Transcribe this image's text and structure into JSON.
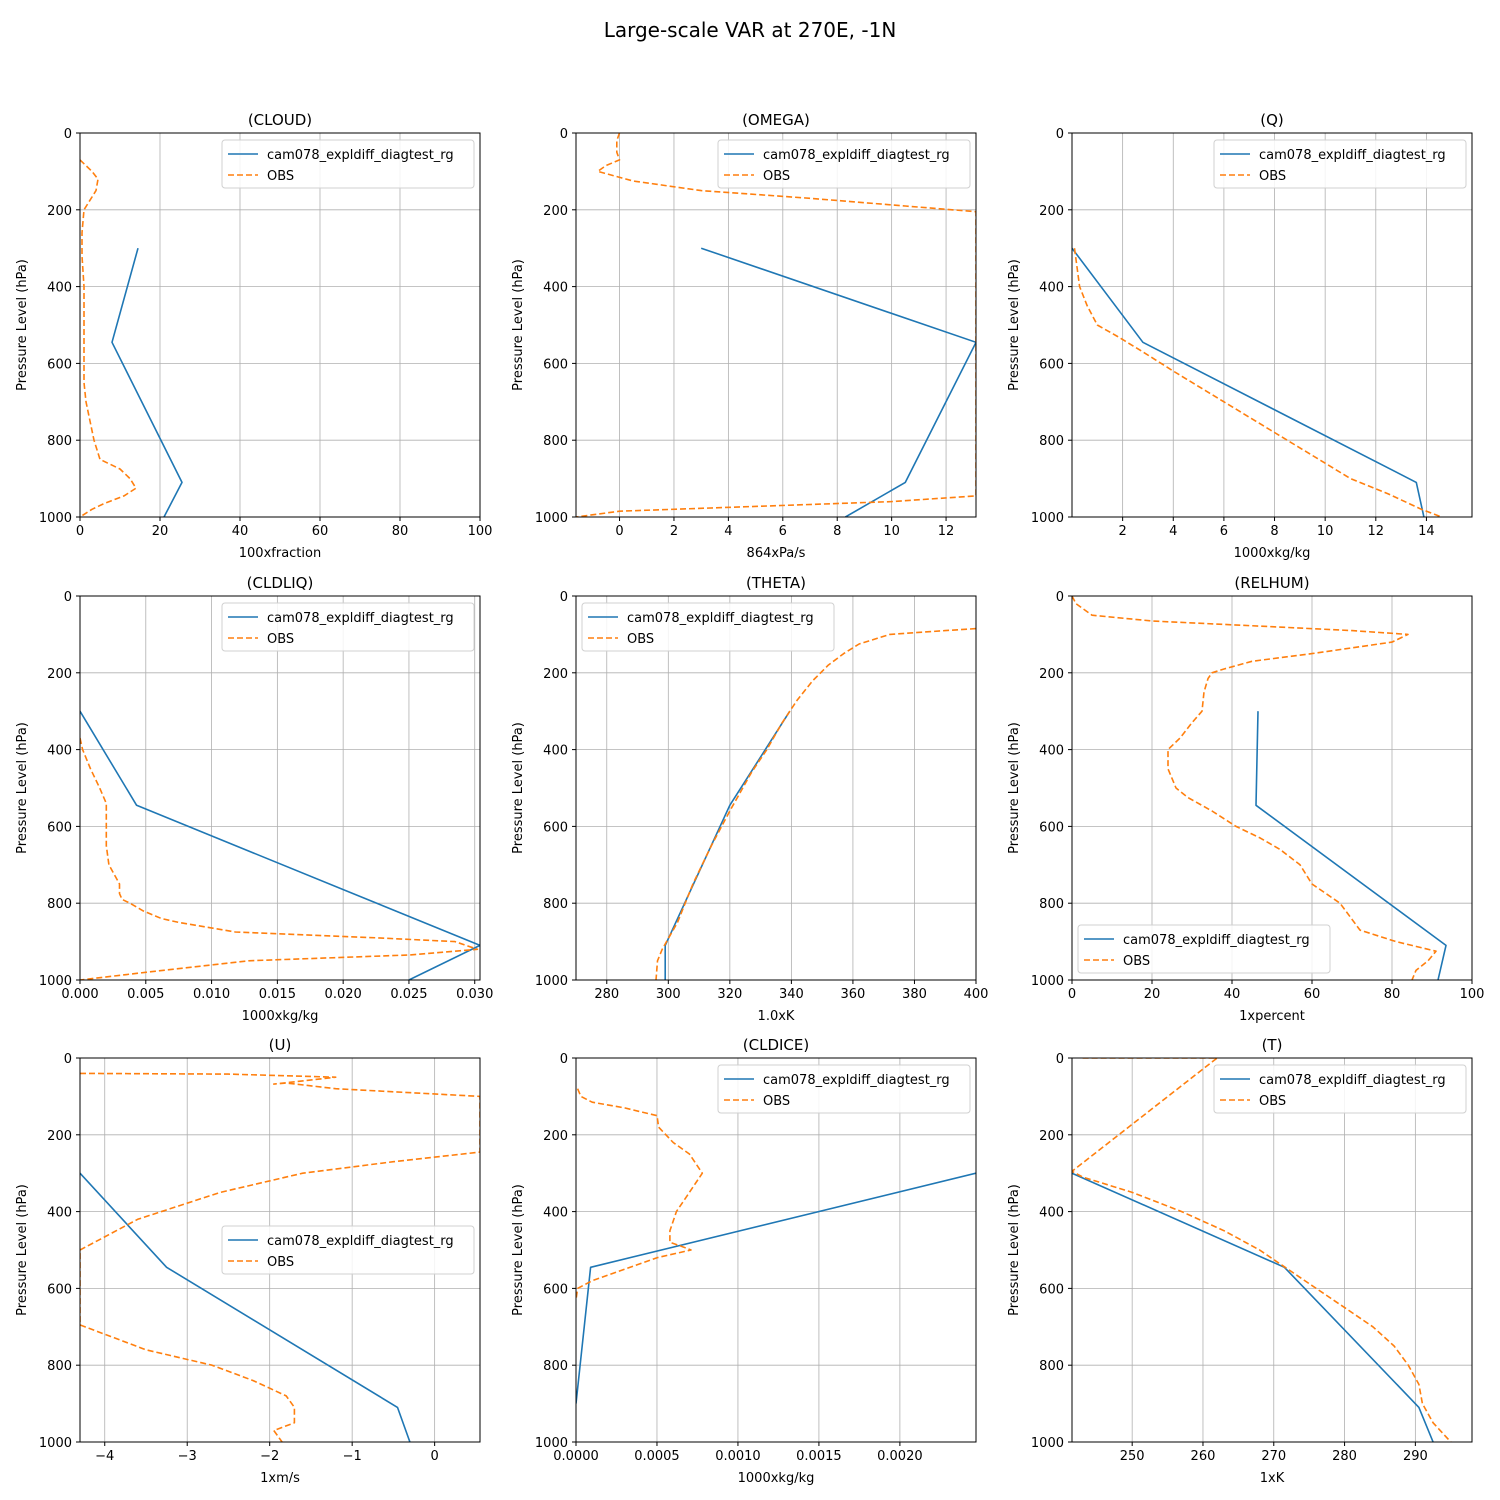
{
  "figure": {
    "title": "Large-scale VAR at 270E, -1N"
  },
  "legend": {
    "model_label": "cam078_expldiff_diagtest_rg",
    "obs_label": "OBS"
  },
  "colors": {
    "model": "#1f77b4",
    "obs": "#ff7f0e",
    "grid": "#b0b0b0",
    "axis": "#000000"
  },
  "chart_data": [
    {
      "type": "line",
      "title": "(CLOUD)",
      "xlabel": "100xfraction",
      "ylabel": "Pressure Level (hPa)",
      "xlim": [
        0,
        100
      ],
      "ylim": [
        1000,
        0
      ],
      "xticks": [
        0,
        20,
        40,
        60,
        80,
        100
      ],
      "xtick_labels": [
        "0",
        "20",
        "40",
        "60",
        "80",
        "100"
      ],
      "yticks": [
        0,
        200,
        400,
        600,
        800,
        1000
      ],
      "ytick_labels": [
        "0",
        "200",
        "400",
        "600",
        "800",
        "1000"
      ],
      "legend_loc": "upper right",
      "grid": true,
      "series": [
        {
          "name": "cam078_expldiff_diagtest_rg",
          "style": "solid",
          "x": [
            14.5,
            8,
            25.5,
            21
          ],
          "y": [
            300,
            545,
            910,
            1000
          ]
        },
        {
          "name": "OBS",
          "style": "dashed",
          "x": [
            0,
            3,
            4.5,
            4,
            2.5,
            1,
            0.5,
            0.5,
            1,
            1,
            1,
            1,
            1,
            1,
            1.5,
            2.5,
            3.5,
            5,
            10,
            12.5,
            14,
            11,
            6,
            3,
            0
          ],
          "y": [
            70,
            100,
            120,
            150,
            175,
            200,
            260,
            320,
            400,
            450,
            500,
            550,
            600,
            650,
            700,
            750,
            800,
            850,
            875,
            900,
            925,
            945,
            965,
            980,
            1000
          ]
        }
      ]
    },
    {
      "type": "line",
      "title": "(OMEGA)",
      "xlabel": "864xPa/s",
      "ylabel": "Pressure Level (hPa)",
      "xlim": [
        -1.6,
        13.1
      ],
      "ylim": [
        1000,
        0
      ],
      "xticks": [
        0,
        2,
        4,
        6,
        8,
        10,
        12
      ],
      "xtick_labels": [
        "0",
        "2",
        "4",
        "6",
        "8",
        "10",
        "12"
      ],
      "yticks": [
        0,
        200,
        400,
        600,
        800,
        1000
      ],
      "ytick_labels": [
        "0",
        "200",
        "400",
        "600",
        "800",
        "1000"
      ],
      "legend_loc": "upper right",
      "grid": true,
      "series": [
        {
          "name": "cam078_expldiff_diagtest_rg",
          "style": "solid",
          "x": [
            3,
            13.1,
            10.5,
            8.3
          ],
          "y": [
            300,
            545,
            910,
            1000
          ]
        },
        {
          "name": "OBS",
          "style": "dashed",
          "x": [
            0,
            -0.1,
            -0.1,
            0,
            -0.5,
            -0.8,
            0.5,
            3,
            7,
            10.5,
            13.1,
            13.1,
            10,
            0,
            -1.6
          ],
          "y": [
            0,
            20,
            50,
            70,
            85,
            100,
            125,
            150,
            170,
            190,
            205,
            945,
            960,
            985,
            1000
          ]
        }
      ]
    },
    {
      "type": "line",
      "title": "(Q)",
      "xlabel": "1000xkg/kg",
      "ylabel": "Pressure Level (hPa)",
      "xlim": [
        0,
        15.8
      ],
      "ylim": [
        1000,
        0
      ],
      "xticks": [
        2,
        4,
        6,
        8,
        10,
        12,
        14
      ],
      "xtick_labels": [
        "2",
        "4",
        "6",
        "8",
        "10",
        "12",
        "14"
      ],
      "yticks": [
        0,
        200,
        400,
        600,
        800,
        1000
      ],
      "ytick_labels": [
        "0",
        "200",
        "400",
        "600",
        "800",
        "1000"
      ],
      "legend_loc": "upper right",
      "grid": true,
      "series": [
        {
          "name": "cam078_expldiff_diagtest_rg",
          "style": "solid",
          "x": [
            0,
            2.8,
            13.6,
            13.9
          ],
          "y": [
            300,
            545,
            910,
            1000
          ]
        },
        {
          "name": "OBS",
          "style": "dashed",
          "x": [
            0.1,
            0.3,
            0.6,
            1,
            1.8,
            2.8,
            4,
            6,
            8,
            10,
            11,
            12.5,
            13.8,
            14.6
          ],
          "y": [
            300,
            400,
            450,
            500,
            530,
            570,
            620,
            700,
            780,
            860,
            900,
            940,
            980,
            1000
          ]
        }
      ]
    },
    {
      "type": "line",
      "title": "(CLDLIQ)",
      "xlabel": "1000xkg/kg",
      "ylabel": "Pressure Level (hPa)",
      "xlim": [
        0,
        0.0304
      ],
      "ylim": [
        1000,
        0
      ],
      "xticks": [
        0,
        0.005,
        0.01,
        0.015,
        0.02,
        0.025,
        0.03
      ],
      "xtick_labels": [
        "0.000",
        "0.005",
        "0.010",
        "0.015",
        "0.020",
        "0.025",
        "0.030"
      ],
      "yticks": [
        0,
        200,
        400,
        600,
        800,
        1000
      ],
      "ytick_labels": [
        "0",
        "200",
        "400",
        "600",
        "800",
        "1000"
      ],
      "legend_loc": "upper right",
      "grid": true,
      "series": [
        {
          "name": "cam078_expldiff_diagtest_rg",
          "style": "solid",
          "x": [
            0,
            0.0043,
            0.0304,
            0.025
          ],
          "y": [
            300,
            545,
            910,
            1000
          ]
        },
        {
          "name": "OBS",
          "style": "dashed",
          "x": [
            0,
            0.0002,
            0.0008,
            0.0015,
            0.002,
            0.002,
            0.002,
            0.0022,
            0.003,
            0.003,
            0.0032,
            0.0038,
            0.0048,
            0.0062,
            0.0075,
            0.0118,
            0.0225,
            0.0285,
            0.0302,
            0.025,
            0.0128,
            0.005,
            0
          ],
          "y": [
            370,
            400,
            450,
            500,
            540,
            600,
            650,
            700,
            750,
            775,
            790,
            800,
            820,
            840,
            850,
            875,
            890,
            900,
            920,
            935,
            950,
            980,
            1000
          ]
        }
      ]
    },
    {
      "type": "line",
      "title": "(THETA)",
      "xlabel": "1.0xK",
      "ylabel": "Pressure Level (hPa)",
      "xlim": [
        270,
        400
      ],
      "ylim": [
        1000,
        0
      ],
      "xticks": [
        280,
        300,
        320,
        340,
        360,
        380,
        400
      ],
      "xtick_labels": [
        "280",
        "300",
        "320",
        "340",
        "360",
        "380",
        "400"
      ],
      "yticks": [
        0,
        200,
        400,
        600,
        800,
        1000
      ],
      "ytick_labels": [
        "0",
        "200",
        "400",
        "600",
        "800",
        "1000"
      ],
      "legend_loc": "upper left",
      "grid": true,
      "series": [
        {
          "name": "cam078_expldiff_diagtest_rg",
          "style": "solid",
          "x": [
            339.5,
            320,
            299,
            299
          ],
          "y": [
            300,
            545,
            910,
            1000
          ]
        },
        {
          "name": "OBS",
          "style": "dashed",
          "x": [
            400,
            390,
            372,
            362,
            357,
            352,
            347,
            342,
            337,
            332,
            327,
            320,
            314,
            308,
            303,
            298,
            296.5,
            296
          ],
          "y": [
            85,
            90,
            100,
            125,
            150,
            180,
            220,
            270,
            330,
            400,
            460,
            560,
            650,
            750,
            850,
            920,
            950,
            1000
          ]
        }
      ]
    },
    {
      "type": "line",
      "title": "(RELHUM)",
      "xlabel": "1xpercent",
      "ylabel": "Pressure Level (hPa)",
      "xlim": [
        0,
        100
      ],
      "ylim": [
        1000,
        0
      ],
      "xticks": [
        0,
        20,
        40,
        60,
        80,
        100
      ],
      "xtick_labels": [
        "0",
        "20",
        "40",
        "60",
        "80",
        "100"
      ],
      "yticks": [
        0,
        200,
        400,
        600,
        800,
        1000
      ],
      "ytick_labels": [
        "0",
        "200",
        "400",
        "600",
        "800",
        "1000"
      ],
      "legend_loc": "lower left",
      "grid": true,
      "series": [
        {
          "name": "cam078_expldiff_diagtest_rg",
          "style": "solid",
          "x": [
            46.5,
            46,
            93.5,
            91.5
          ],
          "y": [
            300,
            545,
            910,
            1000
          ]
        },
        {
          "name": "OBS",
          "style": "dashed",
          "x": [
            0,
            1,
            5,
            20,
            50,
            70,
            84,
            80,
            60,
            45,
            38,
            35,
            34,
            33,
            32.5,
            30,
            27,
            24,
            24,
            26,
            29,
            35,
            41,
            47,
            52,
            57,
            60,
            67,
            72,
            81,
            91,
            89,
            86,
            85
          ],
          "y": [
            0,
            20,
            50,
            65,
            80,
            90,
            100,
            120,
            150,
            170,
            190,
            200,
            215,
            250,
            300,
            330,
            370,
            400,
            450,
            500,
            525,
            560,
            600,
            630,
            660,
            700,
            750,
            800,
            870,
            900,
            925,
            950,
            975,
            1000
          ]
        }
      ]
    },
    {
      "type": "line",
      "title": "(U)",
      "xlabel": "1xm/s",
      "ylabel": "Pressure Level (hPa)",
      "xlim": [
        -4.3,
        0.55
      ],
      "ylim": [
        1000,
        0
      ],
      "xticks": [
        -4,
        -3,
        -2,
        -1,
        0
      ],
      "xtick_labels": [
        "−4",
        "−3",
        "−2",
        "−1",
        "0"
      ],
      "yticks": [
        0,
        200,
        400,
        600,
        800,
        1000
      ],
      "ytick_labels": [
        "0",
        "200",
        "400",
        "600",
        "800",
        "1000"
      ],
      "legend_loc": "center right",
      "grid": true,
      "series": [
        {
          "name": "cam078_expldiff_diagtest_rg",
          "style": "solid",
          "x": [
            -4.3,
            -3.25,
            -0.45,
            -0.3
          ],
          "y": [
            300,
            545,
            910,
            1000
          ]
        },
        {
          "name": "OBS",
          "style": "dashed",
          "x": [
            -4.3,
            -2.5,
            -1.2,
            -1.95,
            -1.8,
            -1.2,
            0.55,
            0.55,
            -0.5,
            -1.6,
            -2.6,
            -3.6,
            -4.3,
            -4.3,
            -3.5,
            -2.7,
            -2.2,
            -1.8,
            -1.7,
            -1.7,
            -1.95,
            -1.85
          ],
          "y": [
            40,
            42,
            50,
            68,
            65,
            80,
            100,
            245,
            270,
            300,
            350,
            420,
            500,
            695,
            760,
            800,
            840,
            880,
            910,
            950,
            970,
            1000
          ]
        }
      ]
    },
    {
      "type": "line",
      "title": "(CLDICE)",
      "xlabel": "1000xkg/kg",
      "ylabel": "Pressure Level (hPa)",
      "xlim": [
        0,
        0.00247
      ],
      "ylim": [
        1000,
        0
      ],
      "xticks": [
        0,
        0.0005,
        0.001,
        0.0015,
        0.002
      ],
      "xtick_labels": [
        "0.0000",
        "0.0005",
        "0.0010",
        "0.0015",
        "0.0020"
      ],
      "yticks": [
        0,
        200,
        400,
        600,
        800,
        1000
      ],
      "ytick_labels": [
        "0",
        "200",
        "400",
        "600",
        "800",
        "1000"
      ],
      "legend_loc": "upper right",
      "grid": true,
      "series": [
        {
          "name": "cam078_expldiff_diagtest_rg",
          "style": "solid",
          "x": [
            0.00247,
            9e-05,
            0
          ],
          "y": [
            300,
            545,
            900
          ]
        },
        {
          "name": "OBS",
          "style": "dashed",
          "x": [
            1e-05,
            3e-05,
            0.0001,
            0.0003,
            0.0004,
            0.0005,
            0.00051,
            0.0006,
            0.0007,
            0.00078,
            0.0007,
            0.00062,
            0.00058,
            0.00058,
            0.00065,
            0.00071,
            0.0005,
            0.0003,
            0.0001,
            1e-05,
            0
          ],
          "y": [
            80,
            100,
            115,
            130,
            140,
            150,
            180,
            220,
            250,
            300,
            350,
            400,
            450,
            480,
            490,
            500,
            520,
            550,
            580,
            600,
            630
          ]
        }
      ]
    },
    {
      "type": "line",
      "title": "(T)",
      "xlabel": "1xK",
      "ylabel": "Pressure Level (hPa)",
      "xlim": [
        241.5,
        298
      ],
      "ylim": [
        1000,
        0
      ],
      "xticks": [
        250,
        260,
        270,
        280,
        290
      ],
      "xtick_labels": [
        "250",
        "260",
        "270",
        "280",
        "290"
      ],
      "yticks": [
        0,
        200,
        400,
        600,
        800,
        1000
      ],
      "ytick_labels": [
        "0",
        "200",
        "400",
        "600",
        "800",
        "1000"
      ],
      "legend_loc": "upper right",
      "grid": true,
      "series": [
        {
          "name": "cam078_expldiff_diagtest_rg",
          "style": "solid",
          "x": [
            241.5,
            271.5,
            290.5,
            292.5
          ],
          "y": [
            300,
            545,
            910,
            1000
          ]
        },
        {
          "name": "OBS",
          "style": "dashed",
          "x": [
            243,
            262,
            241.5,
            243,
            250,
            257,
            263,
            268,
            272,
            276,
            280,
            284,
            287,
            289,
            290.5,
            291,
            292.5,
            295
          ],
          "y": [
            0,
            0,
            295,
            310,
            350,
            400,
            450,
            500,
            550,
            600,
            650,
            700,
            750,
            800,
            850,
            900,
            950,
            1000
          ]
        }
      ]
    }
  ]
}
